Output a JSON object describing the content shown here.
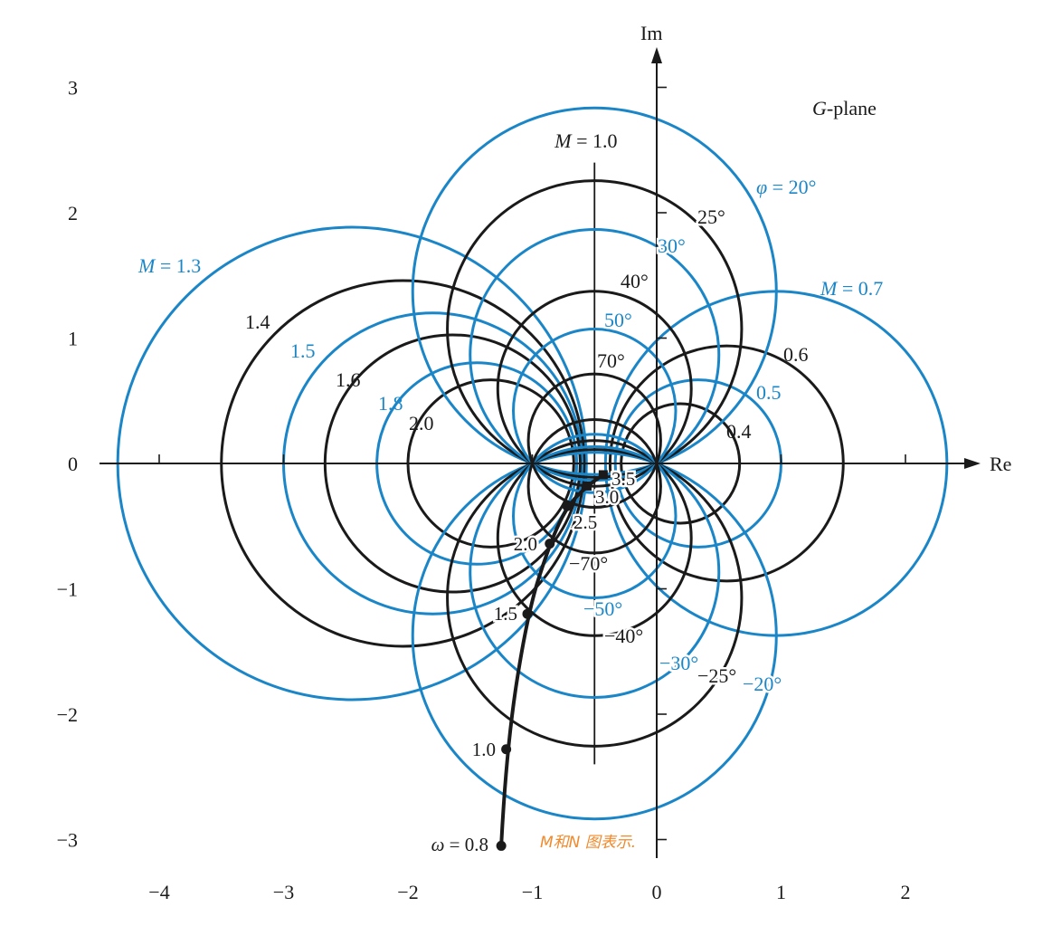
{
  "plane_label": "G-plane",
  "axis_names": {
    "real": "Re",
    "imag": "Im"
  },
  "colors": {
    "black": "#1a1a1a",
    "blue": "#1a86c8",
    "note": "#f08a2c"
  },
  "x_ticks": [
    "-4",
    "-3",
    "-2",
    "-1",
    "0",
    "1",
    "2"
  ],
  "y_ticks": [
    "3",
    "2",
    "1",
    "0",
    "-1",
    "-2",
    "-3"
  ],
  "chart_data": {
    "type": "scatter",
    "title": "",
    "xlabel": "Re",
    "ylabel": "Im",
    "xlim": [
      -4.4,
      2.6
    ],
    "ylim": [
      -3.2,
      3.4
    ],
    "m_circles": [
      {
        "M": 0.4,
        "label": "0.4",
        "color": "black"
      },
      {
        "M": 0.5,
        "label": "0.5",
        "color": "blue"
      },
      {
        "M": 0.6,
        "label": "0.6",
        "color": "black"
      },
      {
        "M": 0.7,
        "label": "M = 0.7",
        "color": "blue"
      },
      {
        "M": 1.0,
        "label": "M = 1.0",
        "color": "black",
        "line": true
      },
      {
        "M": 1.3,
        "label": "M = 1.3",
        "color": "blue"
      },
      {
        "M": 1.4,
        "label": "1.4",
        "color": "black"
      },
      {
        "M": 1.5,
        "label": "1.5",
        "color": "blue"
      },
      {
        "M": 1.6,
        "label": "1.6",
        "color": "black"
      },
      {
        "M": 1.8,
        "label": "1.8",
        "color": "blue"
      },
      {
        "M": 2.0,
        "label": "2.0",
        "color": "black"
      }
    ],
    "n_circles": [
      {
        "phi": 20,
        "label": "φ = 20°",
        "color": "blue"
      },
      {
        "phi": 25,
        "label": "25°",
        "color": "black"
      },
      {
        "phi": 30,
        "label": "30°",
        "color": "blue"
      },
      {
        "phi": 40,
        "label": "40°",
        "color": "black"
      },
      {
        "phi": 50,
        "label": "50°",
        "color": "blue"
      },
      {
        "phi": 70,
        "label": "70°",
        "color": "black"
      },
      {
        "phi": -20,
        "label": "−20°",
        "color": "blue"
      },
      {
        "phi": -25,
        "label": "−25°",
        "color": "black"
      },
      {
        "phi": -30,
        "label": "−30°",
        "color": "blue"
      },
      {
        "phi": -40,
        "label": "−40°",
        "color": "black"
      },
      {
        "phi": -50,
        "label": "−50°",
        "color": "blue"
      },
      {
        "phi": -70,
        "label": "−70°",
        "color": "black"
      }
    ],
    "locus": {
      "points": [
        {
          "re": -1.25,
          "im": -3.05,
          "label": "ω = 0.8"
        },
        {
          "re": -1.21,
          "im": -2.28,
          "label": "1.0"
        },
        {
          "re": -1.04,
          "im": -1.2,
          "label": "1.5"
        },
        {
          "re": -0.86,
          "im": -0.64,
          "label": "2.0"
        },
        {
          "re": -0.72,
          "im": -0.34,
          "label": "2.5"
        },
        {
          "re": -0.56,
          "im": -0.18,
          "label": "3.0"
        },
        {
          "re": -0.43,
          "im": -0.09,
          "label": "3.5"
        }
      ]
    }
  },
  "annotation_note": "M和N 图表示."
}
